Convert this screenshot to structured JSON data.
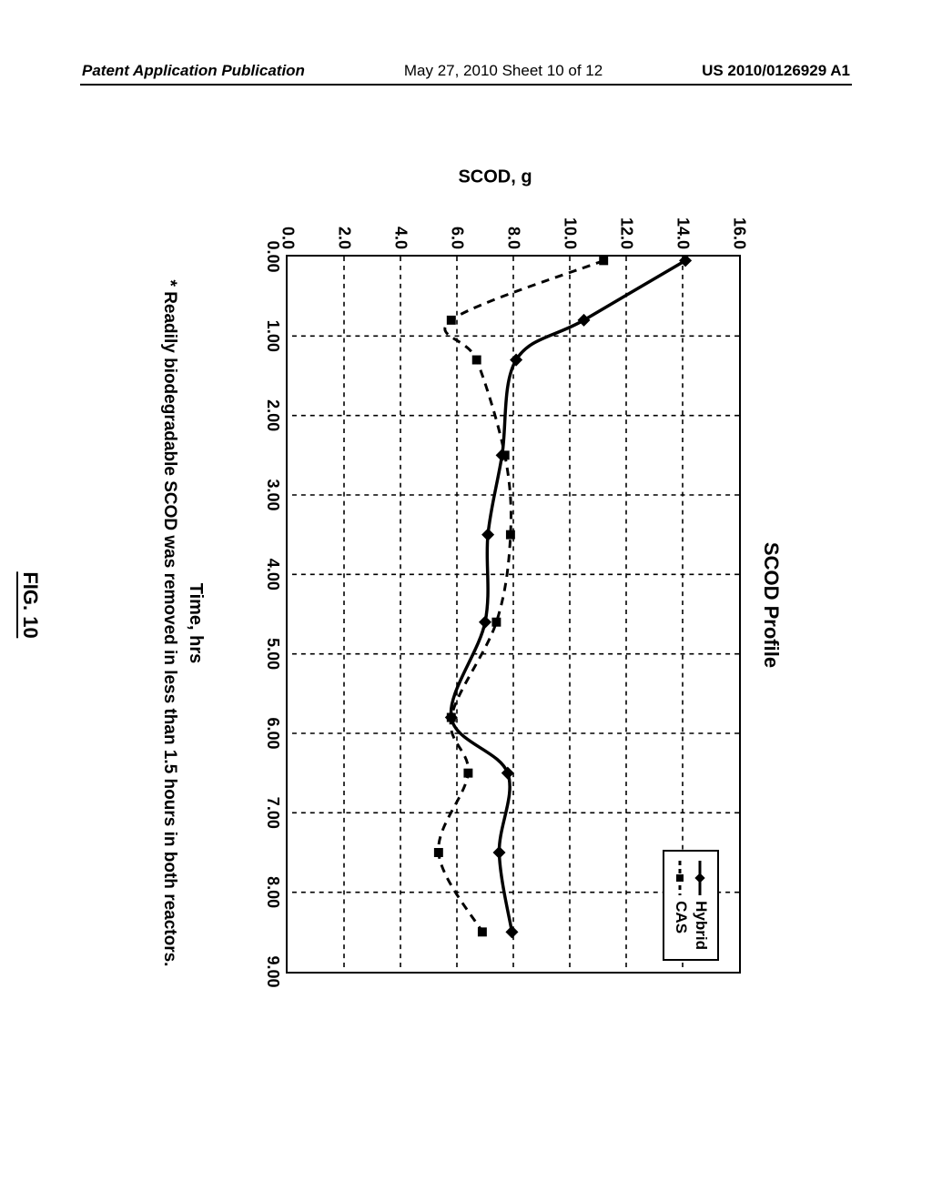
{
  "header": {
    "left": "Patent Application Publication",
    "center": "May 27, 2010  Sheet 10 of 12",
    "right": "US 2010/0126929 A1"
  },
  "chart": {
    "type": "line",
    "title": "SCOD Profile",
    "xlabel": "Time, hrs",
    "ylabel": "SCOD, g",
    "xlim": [
      0.0,
      9.0
    ],
    "ylim": [
      0.0,
      16.0
    ],
    "xtick_step": 1.0,
    "ytick_step": 2.0,
    "xtick_decimals": 2,
    "ytick_decimals": 1,
    "background_color": "#ffffff",
    "grid_color": "#000000",
    "grid_dash": "5,5",
    "axis_width": 2.5,
    "footnote": "* Readily biodegradable SCOD was removed in less than 1.5 hours in both reactors.",
    "fig_label": "FIG. 10",
    "series": [
      {
        "id": "hybrid",
        "label": "Hybrid",
        "color": "#000000",
        "style": "solid",
        "marker": "diamond",
        "marker_size": 10,
        "line_width": 3.5,
        "x": [
          0.05,
          0.8,
          1.3,
          2.5,
          3.5,
          4.6,
          5.8,
          6.5,
          7.5,
          8.5
        ],
        "y": [
          14.1,
          10.5,
          8.1,
          7.6,
          7.1,
          7.0,
          5.8,
          7.8,
          7.5,
          7.95
        ]
      },
      {
        "id": "cas",
        "label": "CAS",
        "color": "#000000",
        "style": "dashed",
        "marker": "square",
        "marker_size": 10,
        "line_width": 3,
        "x": [
          0.05,
          0.8,
          1.3,
          2.5,
          3.5,
          4.6,
          5.8,
          6.5,
          7.5,
          8.5
        ],
        "y": [
          11.2,
          5.8,
          6.7,
          7.7,
          7.9,
          7.4,
          5.8,
          6.4,
          5.35,
          6.9
        ]
      }
    ],
    "legend": {
      "position": "top-right"
    }
  }
}
